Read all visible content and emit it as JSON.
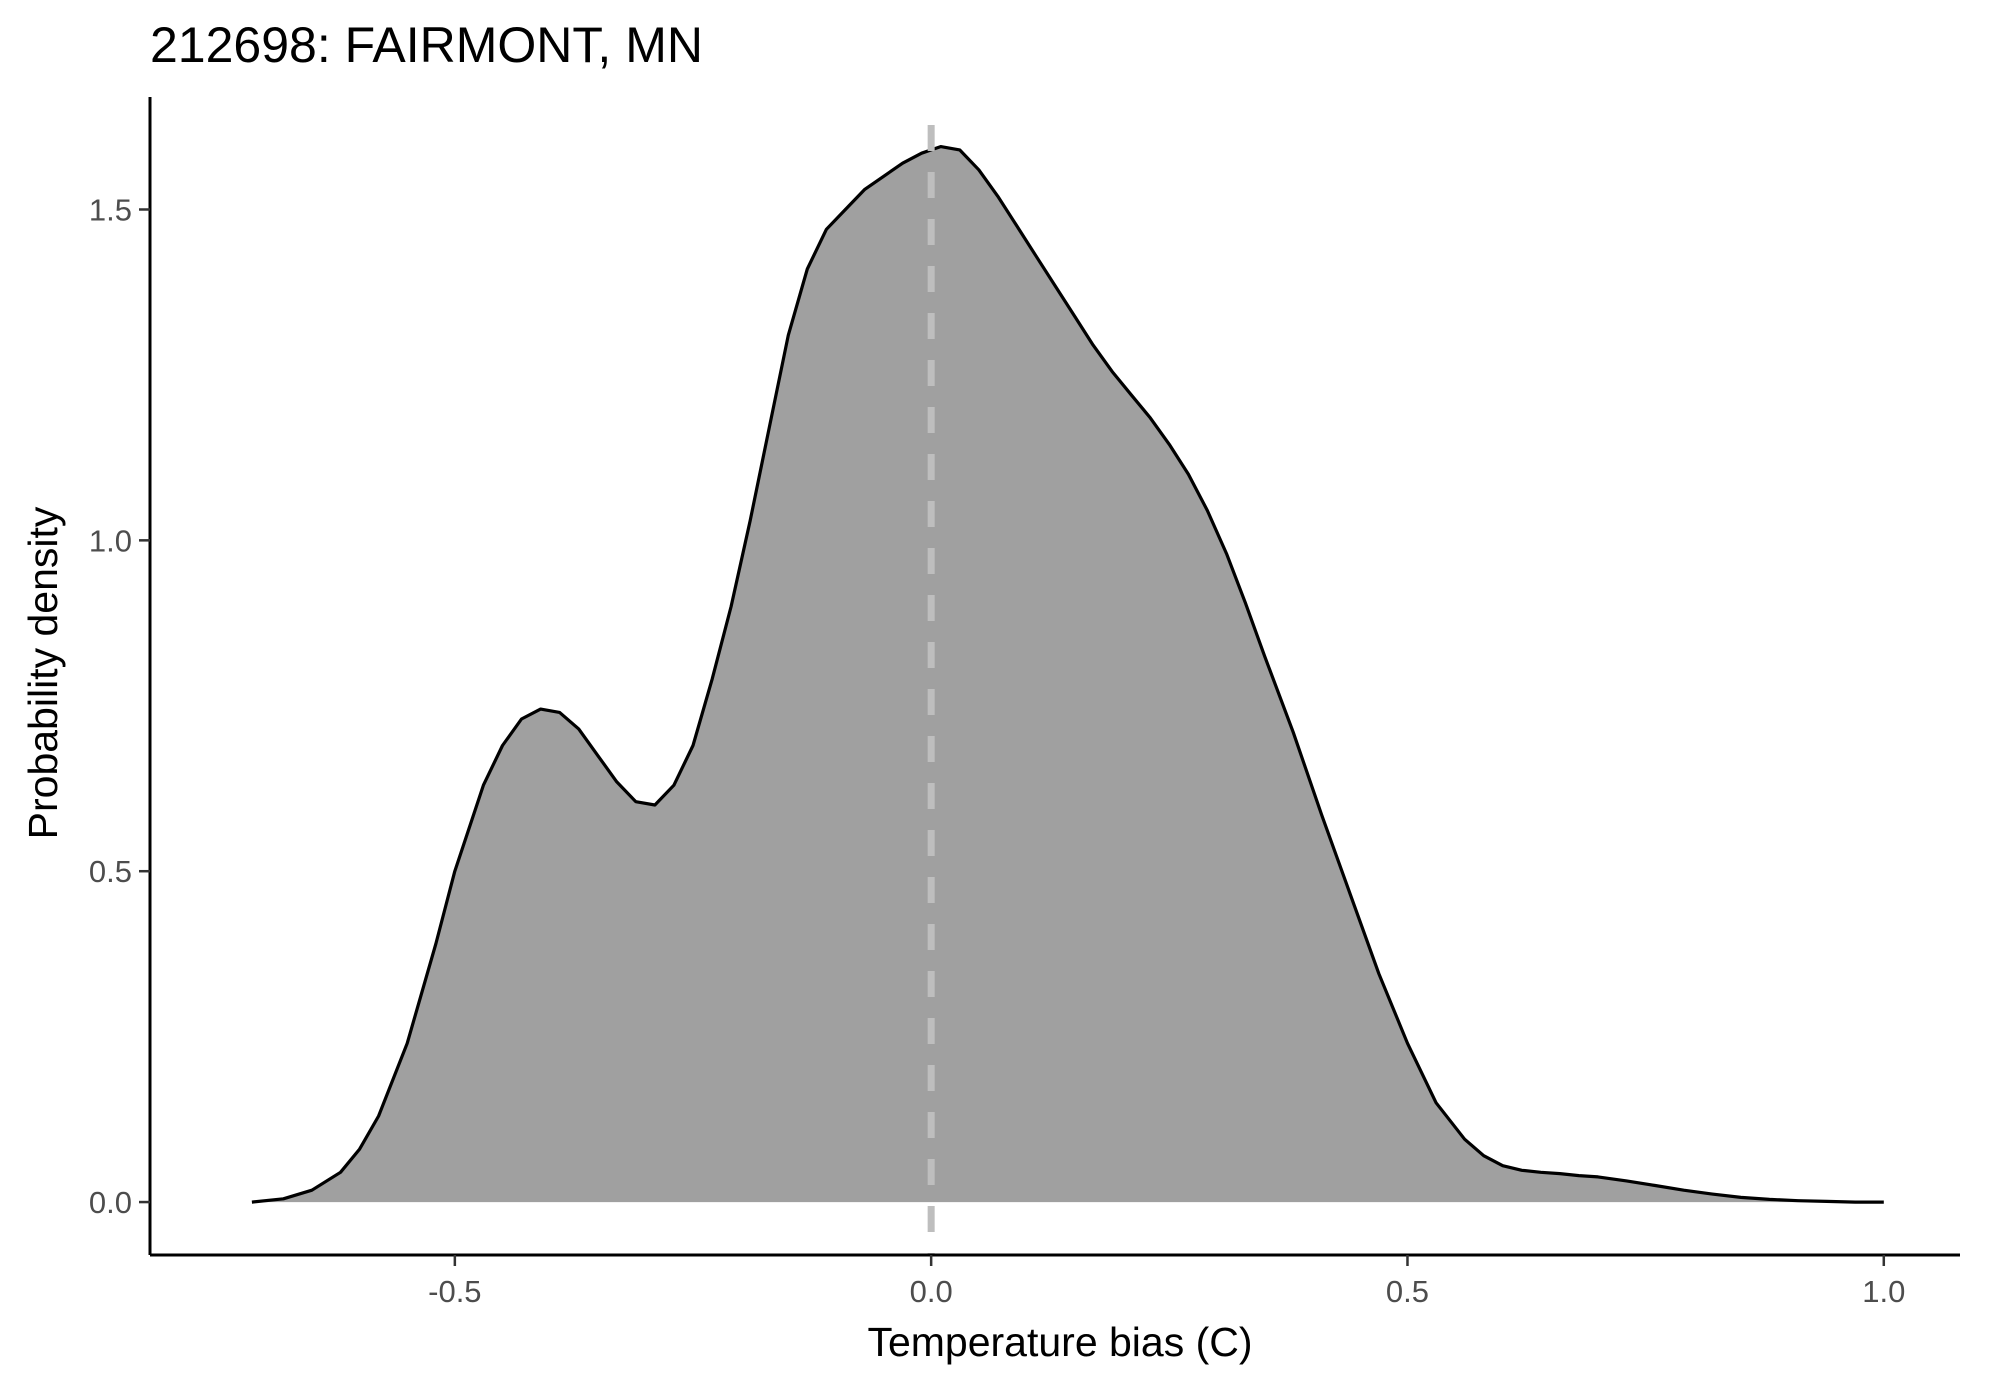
{
  "chart_data": {
    "type": "area",
    "title": "212698: FAIRMONT, MN",
    "xlabel": "Temperature bias (C)",
    "ylabel": "Probability density",
    "xlim": [
      -0.82,
      1.08
    ],
    "ylim": [
      -0.08,
      1.67
    ],
    "x_ticks": [
      -0.5,
      0.0,
      0.5,
      1.0
    ],
    "x_tick_labels": [
      "-0.5",
      "0.0",
      "0.5",
      "1.0"
    ],
    "y_ticks": [
      0.0,
      0.5,
      1.0,
      1.5
    ],
    "y_tick_labels": [
      "0.0",
      "0.5",
      "1.0",
      "1.5"
    ],
    "grid": false,
    "reference_line": {
      "x": 0.0,
      "style": "dashed",
      "color": "#bebebe"
    },
    "fill_color": "#a0a0a0",
    "line_color": "#000000",
    "x": [
      -0.713,
      -0.68,
      -0.65,
      -0.62,
      -0.6,
      -0.58,
      -0.55,
      -0.52,
      -0.5,
      -0.47,
      -0.45,
      -0.43,
      -0.41,
      -0.39,
      -0.37,
      -0.35,
      -0.33,
      -0.31,
      -0.29,
      -0.27,
      -0.25,
      -0.23,
      -0.21,
      -0.19,
      -0.17,
      -0.15,
      -0.13,
      -0.11,
      -0.09,
      -0.07,
      -0.05,
      -0.03,
      -0.01,
      0.0,
      0.01,
      0.03,
      0.05,
      0.07,
      0.09,
      0.11,
      0.13,
      0.15,
      0.17,
      0.19,
      0.21,
      0.23,
      0.25,
      0.27,
      0.29,
      0.31,
      0.33,
      0.35,
      0.38,
      0.41,
      0.44,
      0.47,
      0.5,
      0.53,
      0.56,
      0.58,
      0.6,
      0.62,
      0.64,
      0.66,
      0.68,
      0.7,
      0.73,
      0.76,
      0.79,
      0.82,
      0.85,
      0.88,
      0.91,
      0.94,
      0.97,
      1.0
    ],
    "y": [
      0.0,
      0.005,
      0.018,
      0.045,
      0.08,
      0.13,
      0.24,
      0.39,
      0.5,
      0.63,
      0.69,
      0.73,
      0.745,
      0.74,
      0.715,
      0.675,
      0.635,
      0.605,
      0.6,
      0.63,
      0.69,
      0.79,
      0.9,
      1.03,
      1.17,
      1.31,
      1.41,
      1.47,
      1.5,
      1.53,
      1.55,
      1.57,
      1.585,
      1.59,
      1.595,
      1.59,
      1.56,
      1.52,
      1.475,
      1.43,
      1.385,
      1.34,
      1.295,
      1.255,
      1.22,
      1.185,
      1.145,
      1.1,
      1.045,
      0.98,
      0.905,
      0.825,
      0.71,
      0.585,
      0.465,
      0.345,
      0.24,
      0.15,
      0.095,
      0.07,
      0.055,
      0.048,
      0.045,
      0.043,
      0.04,
      0.038,
      0.032,
      0.025,
      0.018,
      0.012,
      0.007,
      0.004,
      0.002,
      0.001,
      0.0,
      0.0
    ]
  }
}
